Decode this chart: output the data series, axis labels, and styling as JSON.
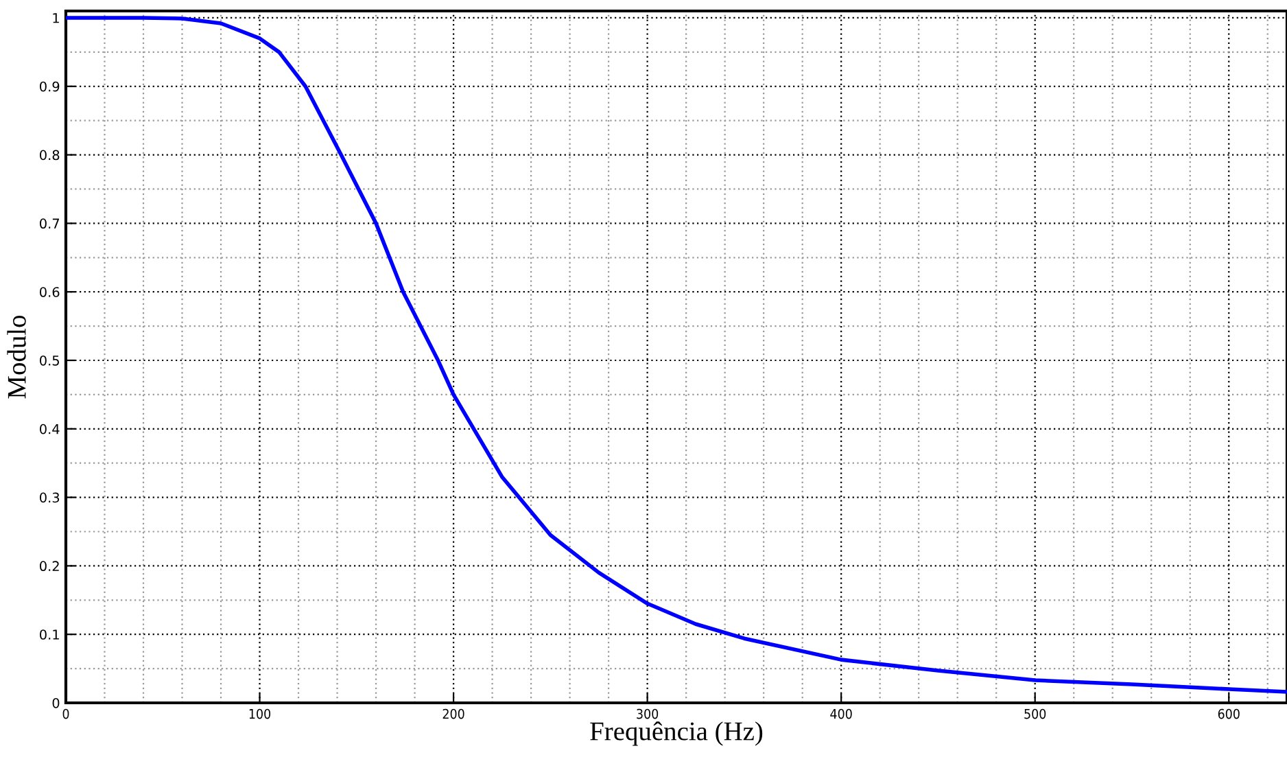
{
  "chart_data": {
    "type": "line",
    "xlabel": "Frequência (Hz)",
    "ylabel": "Modulo",
    "x": [
      0,
      40,
      60,
      80,
      100,
      110,
      123.6,
      142,
      160,
      174,
      192,
      200,
      225,
      250,
      275,
      300,
      325,
      350,
      400,
      450,
      500,
      550,
      600,
      630
    ],
    "series": [
      {
        "color": "#0000ff",
        "values": [
          1,
          1,
          0.999,
          0.992,
          0.97,
          0.95,
          0.9,
          0.8,
          0.7,
          0.6,
          0.5,
          0.45,
          0.33,
          0.245,
          0.19,
          0.145,
          0.115,
          0.094,
          0.063,
          0.047,
          0.033,
          0.027,
          0.02,
          0.016
        ]
      }
    ],
    "xlim": [
      0,
      630
    ],
    "ylim": [
      0,
      1.01
    ],
    "xticks": [
      0,
      100,
      200,
      300,
      400,
      500,
      600
    ],
    "yticks": [
      0,
      0.1,
      0.2,
      0.3,
      0.4,
      0.5,
      0.6,
      0.7,
      0.8,
      0.9,
      1
    ],
    "grid": true,
    "marker": "none",
    "line_style": "solid"
  }
}
